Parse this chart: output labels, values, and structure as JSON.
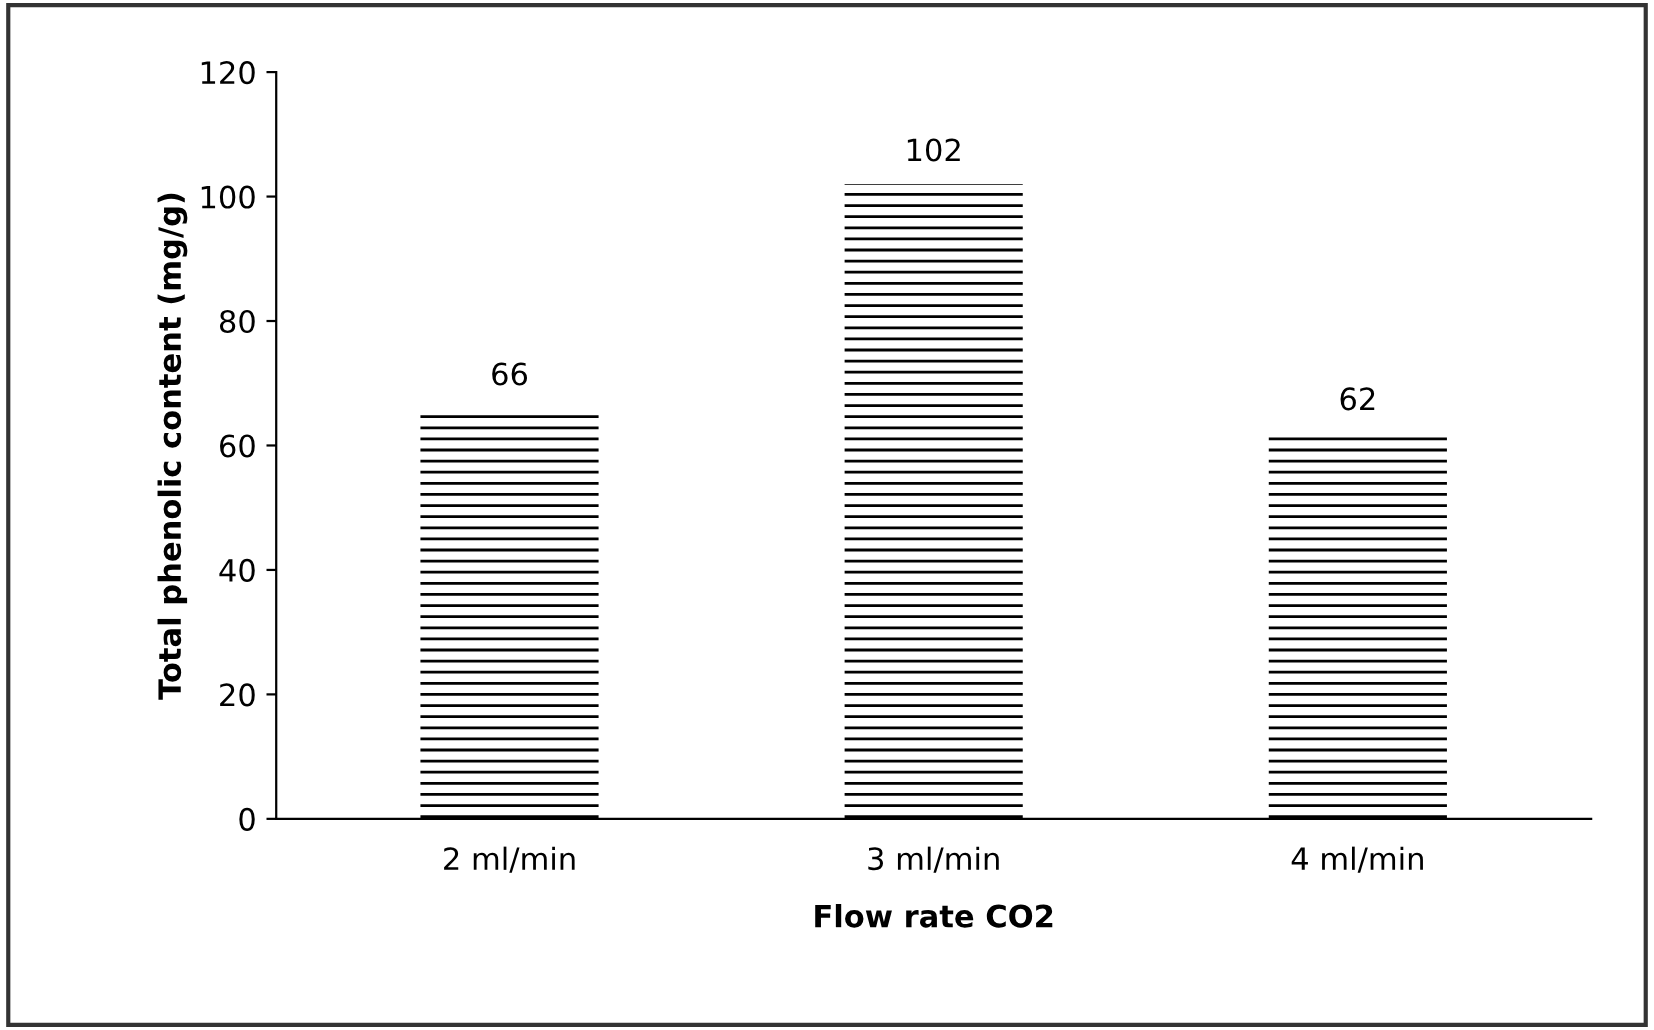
{
  "chart_data": {
    "type": "bar",
    "categories": [
      "2 ml/min",
      "3 ml/min",
      "4 ml/min"
    ],
    "values": [
      66,
      102,
      62
    ],
    "color": "#000000",
    "xlabel": "Flow rate CO2",
    "ylabel": "Total phenolic content (mg/g)",
    "ylim": [
      0,
      120
    ],
    "yticks": [
      0,
      20,
      40,
      60,
      80,
      100,
      120
    ],
    "data_labels": true,
    "grid": false,
    "legend": false
  }
}
